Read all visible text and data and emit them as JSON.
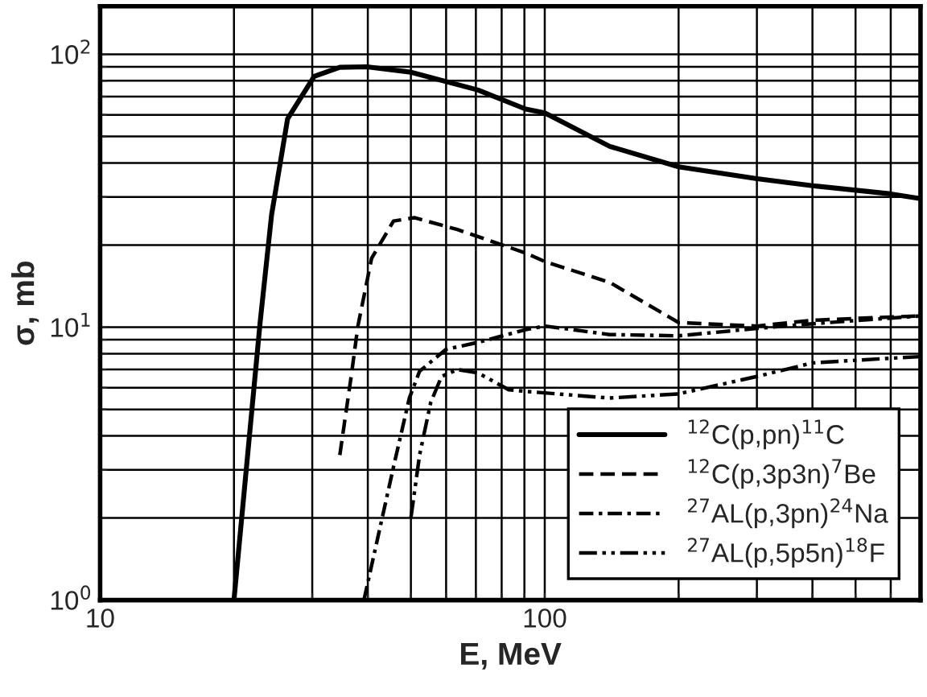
{
  "chart_data": {
    "type": "line",
    "xlabel": "E, MeV",
    "ylabel": "σ, mb",
    "log": "xy",
    "grid": true,
    "legend": "bottom right",
    "xlim": [
      10,
      700
    ],
    "ylim": [
      1,
      150
    ],
    "xticks": [
      10,
      {
        "value": 20,
        "label": null
      },
      {
        "value": 30,
        "label": null
      },
      {
        "value": 40,
        "label": null
      },
      {
        "value": 50,
        "label": null
      },
      {
        "value": 60,
        "label": null
      },
      {
        "value": 70,
        "label": null
      },
      {
        "value": 80,
        "label": null
      },
      {
        "value": 90,
        "label": null
      },
      100,
      {
        "value": 200,
        "label": null
      },
      {
        "value": 300,
        "label": null
      },
      {
        "value": 400,
        "label": null
      },
      {
        "value": 500,
        "label": null
      },
      {
        "value": 600,
        "label": null
      }
    ],
    "yticks": [
      {
        "value": 1,
        "label": "10$^{0}$"
      },
      {
        "value": 2,
        "label": null
      },
      {
        "value": 3,
        "label": null
      },
      {
        "value": 4,
        "label": null
      },
      {
        "value": 5,
        "label": null
      },
      {
        "value": 6,
        "label": null
      },
      {
        "value": 7,
        "label": null
      },
      {
        "value": 8,
        "label": null
      },
      {
        "value": 9,
        "label": null
      },
      {
        "value": 10,
        "label": "10$^{1}$"
      },
      {
        "value": 20,
        "label": null
      },
      {
        "value": 30,
        "label": null
      },
      {
        "value": 40,
        "label": null
      },
      {
        "value": 50,
        "label": null
      },
      {
        "value": 60,
        "label": null
      },
      {
        "value": 70,
        "label": null
      },
      {
        "value": 80,
        "label": null
      },
      {
        "value": 90,
        "label": null
      },
      {
        "value": 100,
        "label": "10$^{2}$"
      }
    ],
    "series": [
      {
        "name": "$^{12}$C(p,pn)$^{11}$C",
        "color": "#000000",
        "line_style": "solid",
        "x": [
          20,
          22.9,
          24.3,
          26.4,
          30.3,
          34.6,
          39.8,
          50,
          70.8,
          90.6,
          100,
          140,
          200,
          300,
          400,
          600,
          700
        ],
        "values": [
          1,
          10.4,
          25.8,
          58,
          83,
          89.6,
          90,
          86,
          74,
          63,
          61,
          46,
          38.7,
          35,
          33,
          30.8,
          29.6
        ]
      },
      {
        "name": "$^{12}$C(p,3p3n)$^{7}$Be",
        "color": "#000000",
        "line_style": "dashed",
        "x": [
          34.6,
          36.7,
          38,
          40.8,
          45.7,
          50.9,
          63.6,
          90.6,
          100,
          140,
          200,
          300,
          400,
          600,
          700
        ],
        "values": [
          3.4,
          6.6,
          10.1,
          17.9,
          24.5,
          25.2,
          22.8,
          18.7,
          17.4,
          14.6,
          10.4,
          10.1,
          10.6,
          10.9,
          11
        ]
      },
      {
        "name": "$^{27}$AL(p,3pn)$^{24}$Na",
        "color": "#000000",
        "line_style": "dashdot",
        "x": [
          39.2,
          45.7,
          49.6,
          52.3,
          60,
          70.8,
          90.6,
          100,
          140,
          200,
          300,
          400,
          600,
          700
        ],
        "values": [
          1,
          3.08,
          5.5,
          6.9,
          8.3,
          8.8,
          9.8,
          10.1,
          9.4,
          9.3,
          9.9,
          10.3,
          10.8,
          11
        ]
      },
      {
        "name": "$^{27}$AL(p,5p5n)$^{18}$F",
        "color": "#000000",
        "line_style": "dashdotdot",
        "x": [
          50,
          52.3,
          55.4,
          58.6,
          63.6,
          70.8,
          83,
          93,
          140,
          200,
          300,
          400,
          600,
          700
        ],
        "values": [
          2,
          3.4,
          5.3,
          6.6,
          7.0,
          6.8,
          5.9,
          5.8,
          5.5,
          5.7,
          6.6,
          7.4,
          7.7,
          7.8
        ]
      }
    ]
  }
}
